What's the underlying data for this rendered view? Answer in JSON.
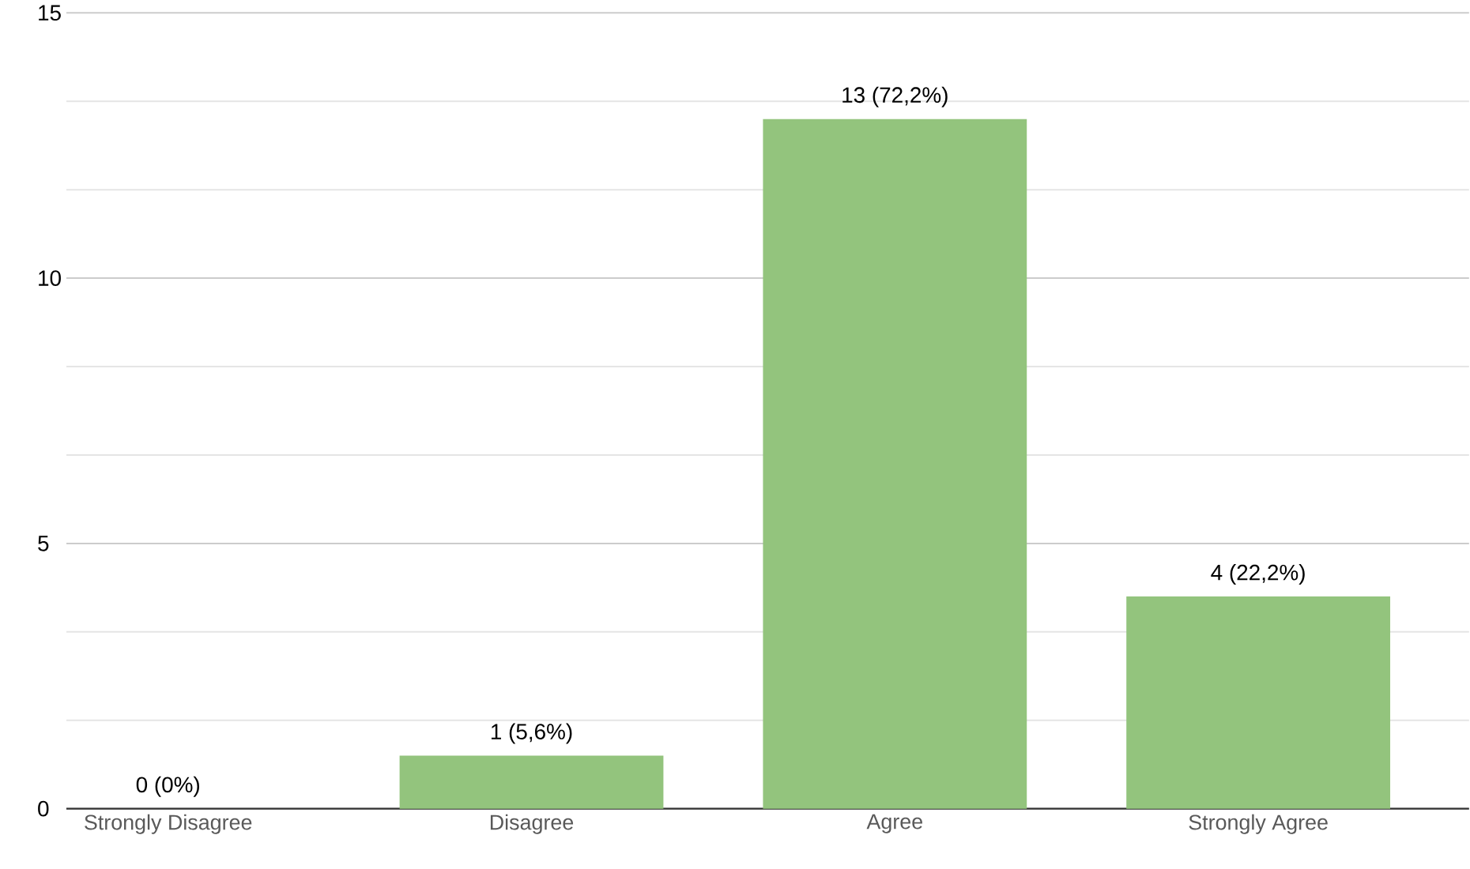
{
  "chart_data": {
    "type": "bar",
    "categories": [
      "Strongly Disagree",
      "Disagree",
      "Agree",
      "Strongly Agree"
    ],
    "values": [
      0,
      1,
      13,
      4
    ],
    "value_labels": [
      "0 (0%)",
      "1 (5,6%)",
      "13 (72,2%)",
      "4 (22,2%)"
    ],
    "color": "#93c47d",
    "ylim": [
      0,
      15
    ],
    "yticks": [
      0,
      5,
      10,
      15
    ],
    "grid": true
  }
}
